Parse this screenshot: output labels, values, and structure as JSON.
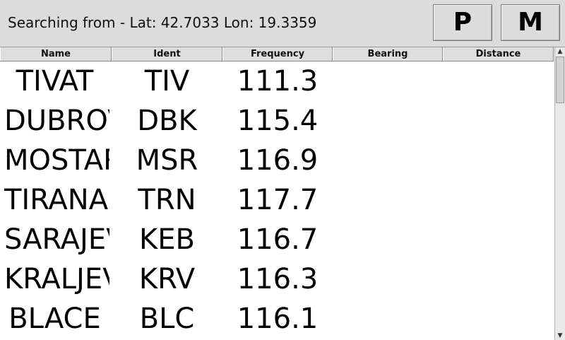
{
  "header": {
    "status_text": "Searching from - Lat: 42.7033 Lon: 19.3359",
    "buttons": [
      {
        "label": "P"
      },
      {
        "label": "M"
      }
    ]
  },
  "table": {
    "columns": [
      "Name",
      "Ident",
      "Frequency",
      "Bearing",
      "Distance"
    ],
    "rows": [
      {
        "name": "TIVAT",
        "ident": "TIV",
        "frequency": "111.3",
        "bearing": "",
        "distance": ""
      },
      {
        "name": "DUBROV",
        "ident": "DBK",
        "frequency": "115.4",
        "bearing": "",
        "distance": ""
      },
      {
        "name": "MOSTAR",
        "ident": "MSR",
        "frequency": "116.9",
        "bearing": "",
        "distance": ""
      },
      {
        "name": "TIRANA",
        "ident": "TRN",
        "frequency": "117.7",
        "bearing": "",
        "distance": ""
      },
      {
        "name": "SARAJEV",
        "ident": "KEB",
        "frequency": "116.7",
        "bearing": "",
        "distance": ""
      },
      {
        "name": "KRALJEV",
        "ident": "KRV",
        "frequency": "116.3",
        "bearing": "",
        "distance": ""
      },
      {
        "name": "BLACE",
        "ident": "BLC",
        "frequency": "116.1",
        "bearing": "",
        "distance": ""
      }
    ]
  },
  "scrollbar": {
    "up_icon": "triangle-up",
    "down_icon": "triangle-down"
  }
}
